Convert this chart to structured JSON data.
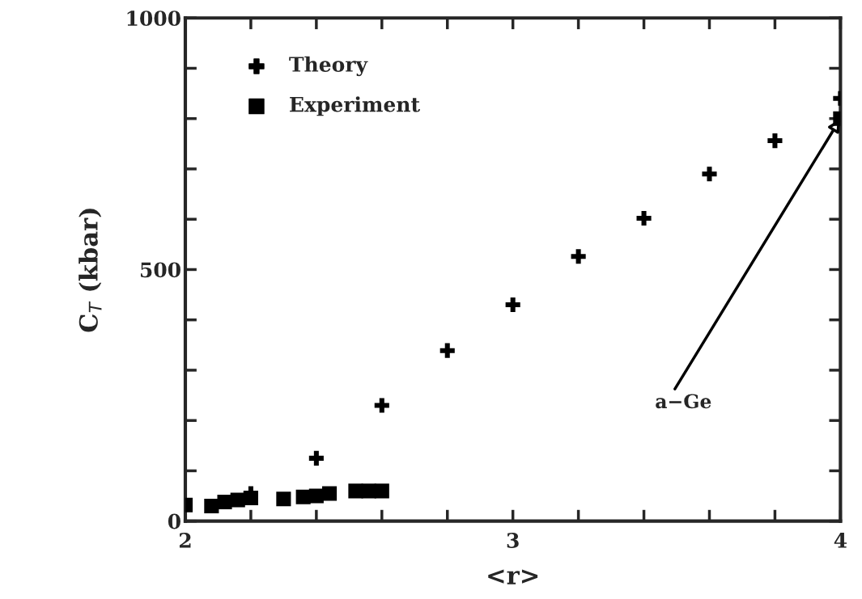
{
  "chart_data": {
    "type": "scatter",
    "xlabel": "<r>",
    "ylabel": "C$_{T}$ (kbar)",
    "xlim": [
      2,
      4
    ],
    "ylim": [
      0,
      1000
    ],
    "xticks": [
      2,
      {
        "value": 2.2,
        "label": null
      },
      {
        "value": 2.4,
        "label": null
      },
      {
        "value": 2.6,
        "label": null
      },
      {
        "value": 2.8,
        "label": null
      },
      3,
      {
        "value": 3.2,
        "label": null
      },
      {
        "value": 3.4,
        "label": null
      },
      {
        "value": 3.6,
        "label": null
      },
      {
        "value": 3.8,
        "label": null
      },
      4
    ],
    "yticks": [
      0,
      {
        "value": 100,
        "label": null
      },
      {
        "value": 200,
        "label": null
      },
      {
        "value": 300,
        "label": null
      },
      {
        "value": 400,
        "label": null
      },
      500,
      {
        "value": 600,
        "label": null
      },
      {
        "value": 700,
        "label": null
      },
      {
        "value": 800,
        "label": null
      },
      {
        "value": 900,
        "label": null
      },
      1000
    ],
    "grid": false,
    "legend": "top left",
    "series": [
      {
        "name": "Theory",
        "color": "#000000",
        "marker": "cross",
        "x": [
          2.2,
          2.4,
          2.6,
          2.8,
          3.0,
          3.2,
          3.4,
          3.6,
          3.8,
          4.0
        ],
        "values": [
          55,
          125,
          230,
          339,
          430,
          526,
          602,
          690,
          756,
          840
        ]
      },
      {
        "name": "Experiment",
        "color": "#000000",
        "marker": "square",
        "x": [
          2.0,
          2.08,
          2.12,
          2.16,
          2.2,
          2.3,
          2.36,
          2.4,
          2.44,
          2.52,
          2.56,
          2.6,
          4.0
        ],
        "values": [
          32,
          30,
          38,
          42,
          46,
          44,
          48,
          50,
          55,
          60,
          60,
          60,
          800
        ]
      }
    ],
    "annotations": [
      {
        "text": "a−Ge",
        "x": 4.0,
        "y": 800
      }
    ]
  }
}
